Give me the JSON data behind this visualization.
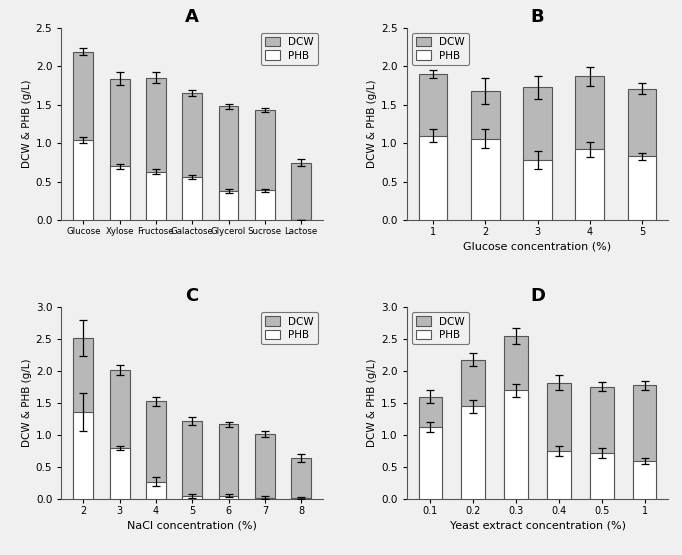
{
  "panel_A": {
    "title": "A",
    "categories": [
      "Glucose",
      "Xylose",
      "Fructose",
      "Galactose",
      "Glycerol",
      "Sucrose",
      "Lactose"
    ],
    "dcw": [
      2.19,
      1.84,
      1.85,
      1.65,
      1.48,
      1.43,
      0.75
    ],
    "phb": [
      1.04,
      0.7,
      0.63,
      0.56,
      0.38,
      0.39,
      0.0
    ],
    "dcw_err": [
      0.05,
      0.08,
      0.07,
      0.04,
      0.03,
      0.03,
      0.05
    ],
    "phb_err": [
      0.04,
      0.03,
      0.03,
      0.03,
      0.03,
      0.02,
      0.0
    ],
    "ylim": [
      0,
      2.5
    ],
    "yticks": [
      0.0,
      0.5,
      1.0,
      1.5,
      2.0,
      2.5
    ],
    "xlabel": "",
    "ylabel": "DCW & PHB (g/L)",
    "legend_loc": "upper right"
  },
  "panel_B": {
    "title": "B",
    "categories": [
      "1",
      "2",
      "3",
      "4",
      "5"
    ],
    "dcw": [
      1.9,
      1.68,
      1.73,
      1.87,
      1.71
    ],
    "phb": [
      1.1,
      1.06,
      0.78,
      0.92,
      0.83
    ],
    "dcw_err": [
      0.05,
      0.17,
      0.15,
      0.12,
      0.07
    ],
    "phb_err": [
      0.08,
      0.12,
      0.12,
      0.1,
      0.05
    ],
    "ylim": [
      0,
      2.5
    ],
    "yticks": [
      0.0,
      0.5,
      1.0,
      1.5,
      2.0,
      2.5
    ],
    "xlabel": "Glucose concentration (%)",
    "ylabel": "DCW & PHB (g/L)",
    "legend_loc": "upper left"
  },
  "panel_C": {
    "title": "C",
    "categories": [
      "2",
      "3",
      "4",
      "5",
      "6",
      "7",
      "8"
    ],
    "dcw": [
      2.52,
      2.02,
      1.53,
      1.22,
      1.17,
      1.02,
      0.65
    ],
    "phb": [
      1.36,
      0.8,
      0.28,
      0.06,
      0.06,
      0.03,
      0.02
    ],
    "dcw_err": [
      0.28,
      0.08,
      0.07,
      0.06,
      0.04,
      0.04,
      0.06
    ],
    "phb_err": [
      0.3,
      0.03,
      0.07,
      0.03,
      0.02,
      0.02,
      0.02
    ],
    "ylim": [
      0,
      3.0
    ],
    "yticks": [
      0.0,
      0.5,
      1.0,
      1.5,
      2.0,
      2.5,
      3.0
    ],
    "xlabel": "NaCl concentration (%)",
    "ylabel": "DCW & PHB (g/L)",
    "legend_loc": "upper right"
  },
  "panel_D": {
    "title": "D",
    "categories": [
      "0.1",
      "0.2",
      "0.3",
      "0.4",
      "0.5",
      "1"
    ],
    "dcw": [
      1.6,
      2.18,
      2.55,
      1.82,
      1.76,
      1.78
    ],
    "phb": [
      1.13,
      1.45,
      1.7,
      0.76,
      0.72,
      0.6
    ],
    "dcw_err": [
      0.1,
      0.1,
      0.12,
      0.12,
      0.07,
      0.07
    ],
    "phb_err": [
      0.08,
      0.1,
      0.1,
      0.08,
      0.08,
      0.05
    ],
    "ylim": [
      0,
      3.0
    ],
    "yticks": [
      0.0,
      0.5,
      1.0,
      1.5,
      2.0,
      2.5,
      3.0
    ],
    "xlabel": "Yeast extract concentration (%)",
    "ylabel": "DCW & PHB (g/L)",
    "legend_loc": "upper left"
  },
  "dcw_color": "#b8b8b8",
  "phb_color": "#ffffff",
  "bar_edgecolor": "#555555",
  "bar_width": 0.55,
  "figsize": [
    6.82,
    5.55
  ],
  "dpi": 100,
  "bg_color": "#f0f0f0"
}
